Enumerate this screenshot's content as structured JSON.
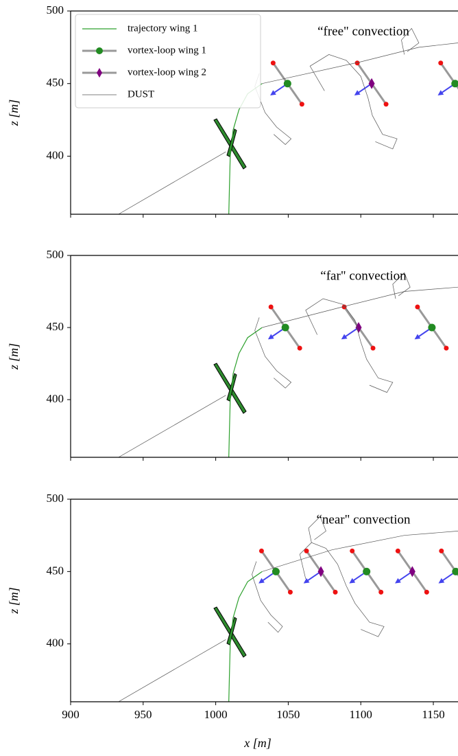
{
  "chart_data": [
    {
      "type": "line",
      "annotation": "“free\" convection",
      "ylabel": "z [m]",
      "xlim": [
        900,
        1167
      ],
      "ylim": [
        360,
        500
      ],
      "xticks": [
        900,
        950,
        1000,
        1050,
        1100,
        1150
      ],
      "yticks": [
        400,
        450,
        500
      ],
      "legend": "upper left",
      "series": [
        {
          "name": "trajectory wing 1",
          "color": "#2ca02c",
          "marker": "none",
          "x": [
            1009,
            1009.5,
            1010,
            1012,
            1016,
            1022,
            1032
          ],
          "values": [
            360,
            380,
            400,
            418,
            432,
            443,
            450
          ]
        },
        {
          "name": "vortex-loop wing 1",
          "color": "#228b22",
          "marker": "circle",
          "x": [
            1049.5,
            1165
          ],
          "values": [
            450,
            450
          ]
        },
        {
          "name": "vortex-loop wing 2",
          "color": "#800080",
          "marker": "diamond",
          "x": [
            1107.5
          ],
          "values": [
            450
          ]
        },
        {
          "name": "DUST",
          "color": "#555555",
          "marker": "none",
          "x": [
            933,
            1007,
            null,
            1030,
            1027,
            1034,
            1042,
            1052,
            1048,
            1040,
            null,
            1075,
            1065,
            1078,
            1090,
            1100,
            1105,
            1108,
            1115,
            1125,
            1122,
            1110,
            null,
            1032,
            1100,
            1140,
            1167,
            null,
            1130,
            1128,
            1135,
            1140,
            1132
          ],
          "values": [
            360,
            403,
            null,
            457,
            448,
            430,
            420,
            412,
            408,
            415,
            null,
            445,
            462,
            470,
            466,
            455,
            440,
            428,
            415,
            412,
            405,
            410,
            null,
            450,
            465,
            475,
            478,
            null,
            470,
            480,
            488,
            478,
            472
          ]
        }
      ]
    },
    {
      "type": "line",
      "annotation": "“far\" convection",
      "ylabel": "z [m]",
      "xlim": [
        900,
        1167
      ],
      "ylim": [
        360,
        500
      ],
      "xticks": [
        900,
        950,
        1000,
        1050,
        1100,
        1150
      ],
      "yticks": [
        400,
        450,
        500
      ],
      "series": [
        {
          "color": "#2ca02c",
          "marker": "none",
          "x": [
            1009,
            1009.5,
            1010,
            1012,
            1016,
            1022,
            1032
          ],
          "values": [
            360,
            380,
            400,
            418,
            432,
            443,
            450
          ]
        },
        {
          "color": "#228b22",
          "marker": "circle",
          "x": [
            1048,
            1149
          ],
          "values": [
            450,
            450
          ]
        },
        {
          "color": "#800080",
          "marker": "diamond",
          "x": [
            1098.5
          ],
          "values": [
            450
          ]
        },
        {
          "color": "#555555",
          "marker": "none",
          "x": [
            933,
            1007,
            null,
            1030,
            1027,
            1034,
            1042,
            1052,
            1048,
            1040,
            null,
            1070,
            1062,
            1074,
            1088,
            1096,
            1100,
            1104,
            1112,
            1122,
            1118,
            1106,
            null,
            1032,
            1090,
            1130,
            1167,
            null,
            1124,
            1122,
            1130,
            1134,
            1126
          ],
          "values": [
            360,
            403,
            null,
            457,
            448,
            430,
            420,
            412,
            408,
            415,
            null,
            445,
            462,
            470,
            466,
            455,
            440,
            428,
            415,
            412,
            405,
            410,
            null,
            450,
            465,
            475,
            478,
            null,
            470,
            480,
            488,
            478,
            472
          ]
        }
      ]
    },
    {
      "type": "line",
      "annotation": "“near\" convection",
      "ylabel": "z [m]",
      "xlabel": "x [m]",
      "xlim": [
        900,
        1167
      ],
      "ylim": [
        360,
        500
      ],
      "xticks": [
        900,
        950,
        1000,
        1050,
        1100,
        1150
      ],
      "yticks": [
        400,
        450,
        500
      ],
      "series": [
        {
          "color": "#2ca02c",
          "marker": "none",
          "x": [
            1009,
            1009.5,
            1010,
            1012,
            1016,
            1022,
            1032
          ],
          "values": [
            360,
            380,
            400,
            418,
            432,
            443,
            450
          ]
        },
        {
          "color": "#228b22",
          "marker": "circle",
          "x": [
            1041.5,
            1104,
            1165.5
          ],
          "values": [
            450,
            450,
            450
          ]
        },
        {
          "color": "#800080",
          "marker": "diamond",
          "x": [
            1072.5,
            1135.5
          ],
          "values": [
            450,
            450
          ]
        },
        {
          "color": "#555555",
          "marker": "none",
          "x": [
            933,
            1007,
            null,
            1028,
            1025,
            1031,
            1038,
            1046,
            1043,
            1036,
            null,
            1062,
            1058,
            1066,
            1076,
            1084,
            1090,
            1096,
            1106,
            1116,
            1112,
            1100,
            null,
            1032,
            1080,
            1130,
            1167,
            null,
            1066,
            1064,
            1072,
            1076,
            1068
          ],
          "values": [
            360,
            403,
            null,
            457,
            448,
            430,
            420,
            412,
            408,
            415,
            null,
            445,
            462,
            470,
            466,
            455,
            440,
            428,
            415,
            412,
            405,
            410,
            null,
            450,
            465,
            475,
            478,
            null,
            470,
            480,
            488,
            478,
            472
          ]
        }
      ]
    }
  ]
}
